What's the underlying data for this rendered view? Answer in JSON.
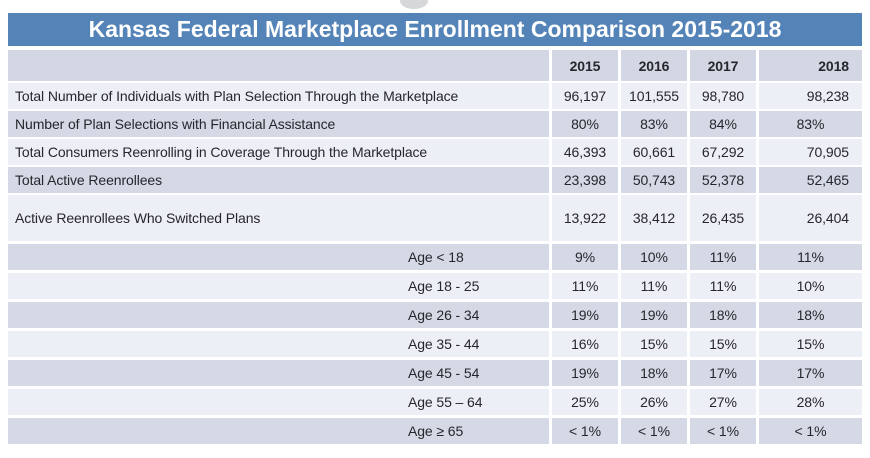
{
  "colors": {
    "title_bar": "#5483b8",
    "title_text": "#ffffff",
    "header_row_bg": "#d2d7e3",
    "row_dark_bg": "#d4d9e5",
    "row_light_bg": "#edeff6",
    "body_text": "#26262c"
  },
  "chart_data": {
    "type": "table",
    "title": "Kansas Federal Marketplace Enrollment Comparison 2015-2018",
    "year_columns": [
      "2015",
      "2016",
      "2017",
      "2018"
    ],
    "rows": [
      {
        "label": "Total Number of Individuals with Plan Selection Through the Marketplace",
        "values": [
          "96,197",
          "101,555",
          "98,780",
          "98,238"
        ]
      },
      {
        "label": "Number of Plan Selections with Financial Assistance",
        "values": [
          "80%",
          "83%",
          "84%",
          "83%"
        ]
      },
      {
        "label": "Total Consumers Reenrolling in Coverage Through the Marketplace",
        "values": [
          "46,393",
          "60,661",
          "67,292",
          "70,905"
        ]
      },
      {
        "label": "Total Active Reenrollees",
        "values": [
          "23,398",
          "50,743",
          "52,378",
          "52,465"
        ]
      },
      {
        "label": "Active Reenrollees Who Switched Plans",
        "values": [
          "13,922",
          "38,412",
          "26,435",
          "26,404"
        ]
      },
      {
        "label": "Age < 18",
        "values": [
          "9%",
          "10%",
          "11%",
          "11%"
        ]
      },
      {
        "label": "Age 18 - 25",
        "values": [
          "11%",
          "11%",
          "11%",
          "10%"
        ]
      },
      {
        "label": "Age 26 - 34",
        "values": [
          "19%",
          "19%",
          "18%",
          "18%"
        ]
      },
      {
        "label": "Age 35 - 44",
        "values": [
          "16%",
          "15%",
          "15%",
          "15%"
        ]
      },
      {
        "label": "Age 45 - 54",
        "values": [
          "19%",
          "18%",
          "17%",
          "17%"
        ]
      },
      {
        "label": "Age 55 – 64",
        "values": [
          "25%",
          "26%",
          "27%",
          "28%"
        ]
      },
      {
        "label": "Age ≥ 65",
        "values": [
          "< 1%",
          "< 1%",
          "< 1%",
          "< 1%"
        ]
      }
    ]
  }
}
